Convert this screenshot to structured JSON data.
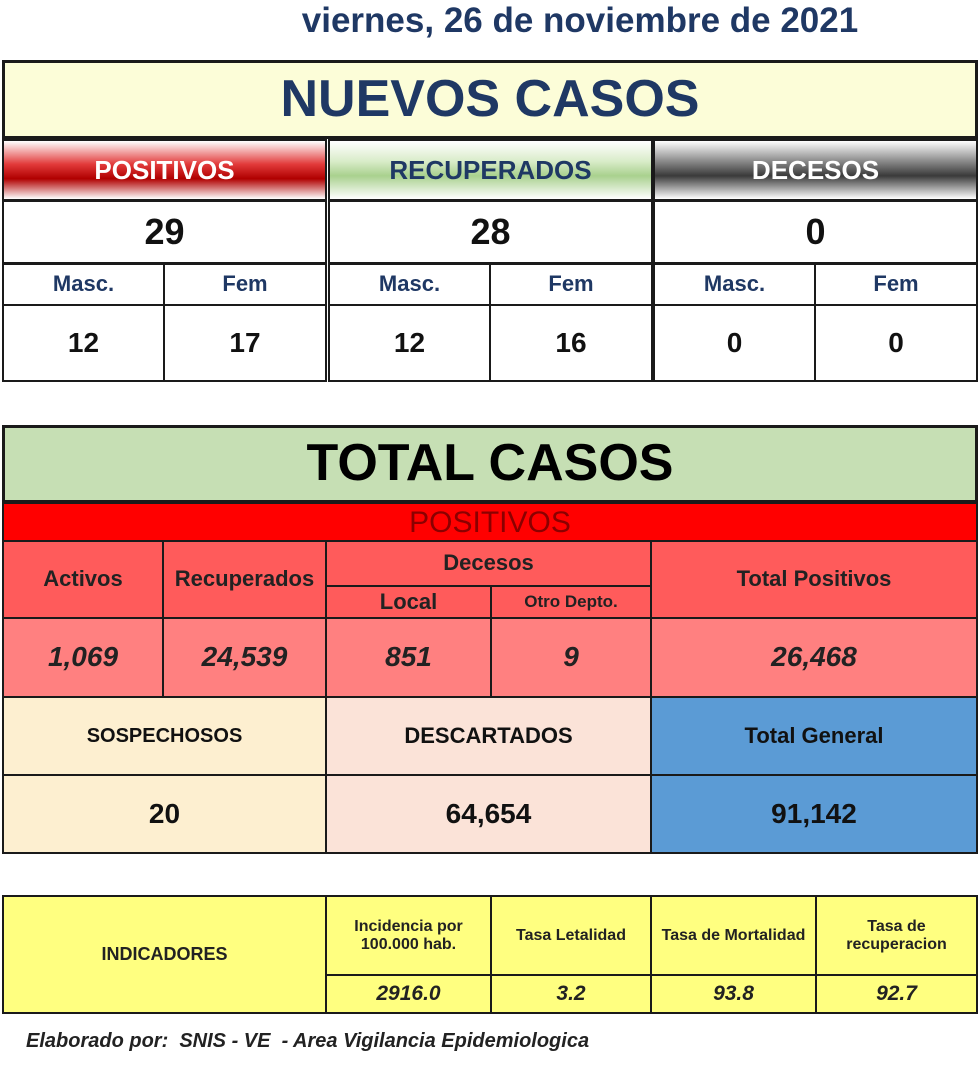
{
  "date": "viernes, 26 de noviembre de 2021",
  "new_cases": {
    "title": "NUEVOS CASOS",
    "groups": [
      {
        "label": "POSITIVOS",
        "total": "29",
        "male_label": "Masc.",
        "female_label": "Fem",
        "male": "12",
        "female": "17"
      },
      {
        "label": "RECUPERADOS",
        "total": "28",
        "male_label": "Masc.",
        "female_label": "Fem",
        "male": "12",
        "female": "16"
      },
      {
        "label": "DECESOS",
        "total": "0",
        "male_label": "Masc.",
        "female_label": "Fem",
        "male": "0",
        "female": "0"
      }
    ]
  },
  "total_cases": {
    "title": "TOTAL CASOS",
    "positives": {
      "label": "POSITIVOS",
      "headers": {
        "active": "Activos",
        "recovered": "Recuperados",
        "deaths": "Decesos",
        "local": "Local",
        "other": "Otro Depto.",
        "total": "Total Positivos"
      },
      "values": {
        "active": "1,069",
        "recovered": "24,539",
        "local": "851",
        "other": "9",
        "total": "26,468"
      }
    },
    "suspected": {
      "label": "SOSPECHOSOS",
      "value": "20"
    },
    "discarded": {
      "label": "DESCARTADOS",
      "value": "64,654"
    },
    "general": {
      "label": "Total General",
      "value": "91,142"
    }
  },
  "indicators": {
    "label": "INDICADORES",
    "items": [
      {
        "label": "Incidencia por 100.000 hab.",
        "value": "2916.0"
      },
      {
        "label": "Tasa Letalidad",
        "value": "3.2"
      },
      {
        "label": "Tasa de Mortalidad",
        "value": "93.8"
      },
      {
        "label": "Tasa de recuperacion",
        "value": "92.7"
      }
    ]
  },
  "footer": "Elaborado por:  SNIS - VE  - Area Vigilancia Epidemiologica"
}
